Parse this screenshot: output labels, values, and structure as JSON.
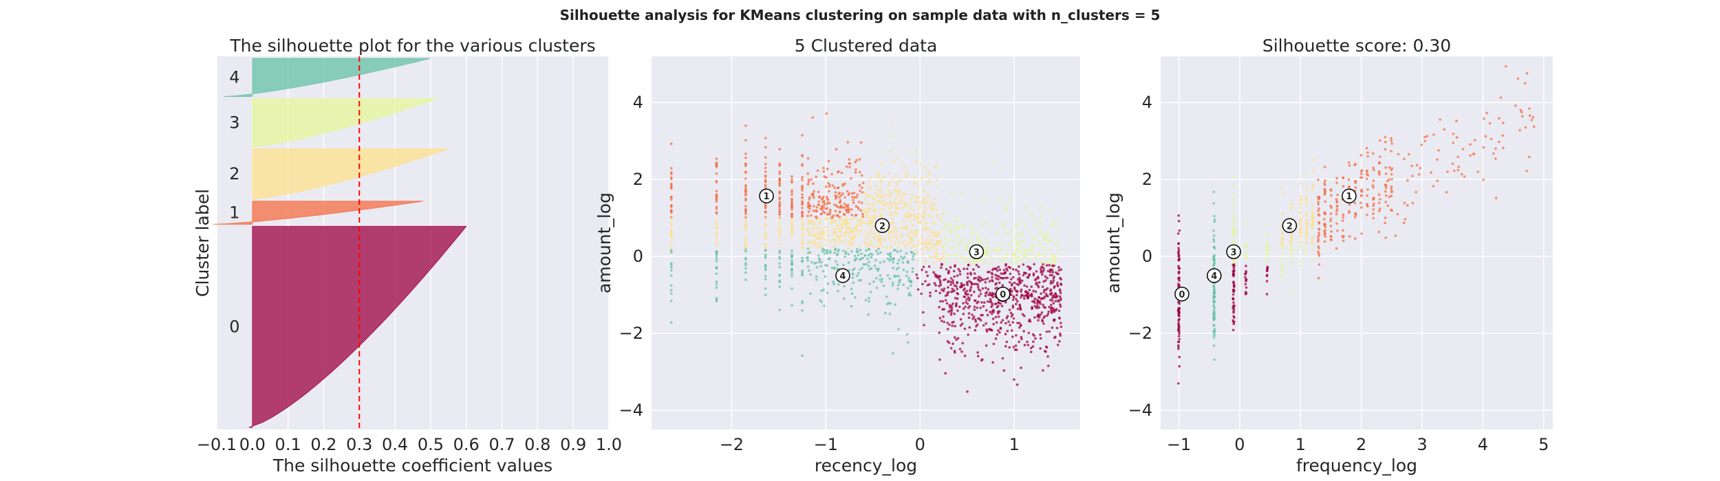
{
  "figure": {
    "suptitle": "Silhouette analysis for KMeans clustering on sample data with n_clusters = 5",
    "background": "#eaeaf2",
    "grid_color": "#ffffff"
  },
  "cluster_colors": {
    "0": "#9e0142",
    "1": "#f46d43",
    "2": "#fee08b",
    "3": "#e6f598",
    "4": "#66c2a5"
  },
  "chart_data": [
    {
      "type": "area",
      "title": "The silhouette plot for the various clusters",
      "xlabel": "The silhouette coefficient values",
      "ylabel": "Cluster label",
      "xlim": [
        -0.1,
        1.0
      ],
      "xticks": [
        "−0.1",
        "0.0",
        "0.1",
        "0.2",
        "0.3",
        "0.4",
        "0.5",
        "0.6",
        "0.7",
        "0.8",
        "0.9",
        "1.0"
      ],
      "xtick_values": [
        -0.1,
        0.0,
        0.1,
        0.2,
        0.3,
        0.4,
        0.5,
        0.6,
        0.7,
        0.8,
        0.9,
        1.0
      ],
      "average_silhouette": 0.3,
      "grid": true,
      "clusters": [
        {
          "label": "0",
          "size": 1000,
          "max": 0.6,
          "min": -0.01
        },
        {
          "label": "1",
          "size": 115,
          "max": 0.48,
          "min": -0.11
        },
        {
          "label": "2",
          "size": 250,
          "max": 0.55,
          "min": 0.0
        },
        {
          "label": "3",
          "size": 240,
          "max": 0.52,
          "min": 0.0
        },
        {
          "label": "4",
          "size": 190,
          "max": 0.5,
          "min": -0.08
        }
      ]
    },
    {
      "type": "scatter",
      "title": "5 Clustered data",
      "xlabel": "recency_log",
      "ylabel": "amount_log",
      "xlim": [
        -2.85,
        1.7
      ],
      "ylim": [
        -4.5,
        5.2
      ],
      "xticks": [
        "−2",
        "−1",
        "0",
        "1"
      ],
      "xtick_values": [
        -2,
        -1,
        0,
        1
      ],
      "yticks": [
        "−4",
        "−2",
        "0",
        "2",
        "4"
      ],
      "ytick_values": [
        -4,
        -2,
        0,
        2,
        4
      ],
      "grid": true,
      "centers": [
        {
          "label": "0",
          "x": 0.88,
          "y": -0.98
        },
        {
          "label": "1",
          "x": -1.63,
          "y": 1.57
        },
        {
          "label": "2",
          "x": -0.4,
          "y": 0.8
        },
        {
          "label": "3",
          "x": 0.6,
          "y": 0.12
        },
        {
          "label": "4",
          "x": -0.82,
          "y": -0.5
        }
      ]
    },
    {
      "type": "scatter",
      "title": "Silhouette score: 0.30",
      "xlabel": "frequency_log",
      "ylabel": "amount_log",
      "xlim": [
        -1.3,
        5.15
      ],
      "ylim": [
        -4.5,
        5.2
      ],
      "xticks": [
        "−1",
        "0",
        "1",
        "2",
        "3",
        "4",
        "5"
      ],
      "xtick_values": [
        -1,
        0,
        1,
        2,
        3,
        4,
        5
      ],
      "yticks": [
        "−4",
        "−2",
        "0",
        "2",
        "4"
      ],
      "ytick_values": [
        -4,
        -2,
        0,
        2,
        4
      ],
      "grid": true,
      "centers": [
        {
          "label": "0",
          "x": -0.95,
          "y": -0.98
        },
        {
          "label": "1",
          "x": 1.8,
          "y": 1.57
        },
        {
          "label": "2",
          "x": 0.82,
          "y": 0.8
        },
        {
          "label": "3",
          "x": -0.1,
          "y": 0.12
        },
        {
          "label": "4",
          "x": -0.42,
          "y": -0.5
        }
      ]
    }
  ]
}
